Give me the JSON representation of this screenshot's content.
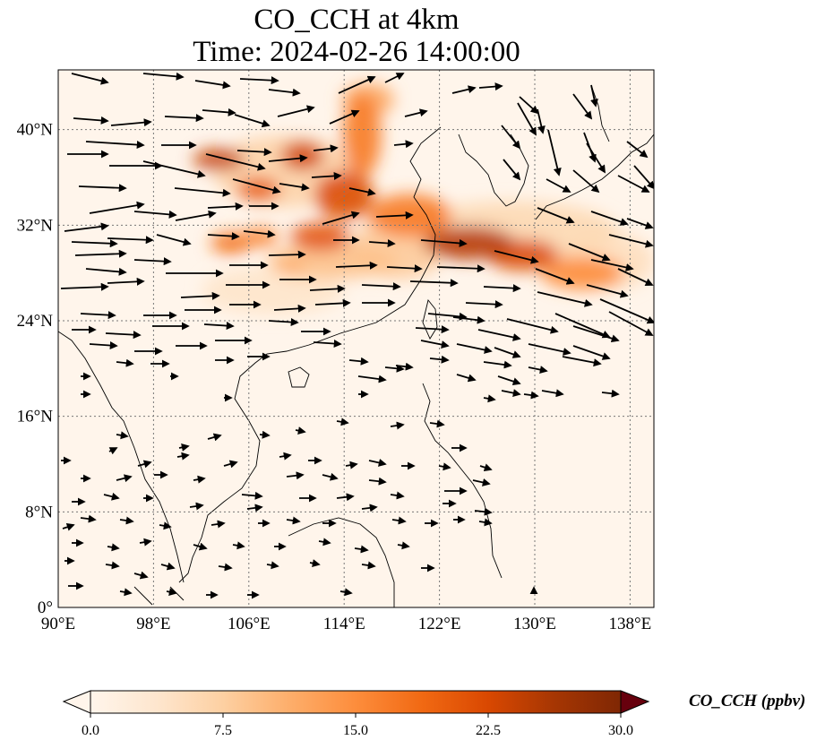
{
  "title": {
    "line1": "CO_CCH at 4km",
    "line2": "Time: 2024-02-26 14:00:00"
  },
  "map": {
    "lon_range": [
      90,
      140
    ],
    "lat_range": [
      0,
      45
    ],
    "lon_ticks": [
      {
        "value": 90,
        "label": "90°E"
      },
      {
        "value": 98,
        "label": "98°E"
      },
      {
        "value": 106,
        "label": "106°E"
      },
      {
        "value": 114,
        "label": "114°E"
      },
      {
        "value": 122,
        "label": "122°E"
      },
      {
        "value": 130,
        "label": "130°E"
      },
      {
        "value": 138,
        "label": "138°E"
      }
    ],
    "lat_ticks": [
      {
        "value": 0,
        "label": "0°"
      },
      {
        "value": 8,
        "label": "8°N"
      },
      {
        "value": 16,
        "label": "16°N"
      },
      {
        "value": 24,
        "label": "24°N"
      },
      {
        "value": 32,
        "label": "32°N"
      },
      {
        "value": 40,
        "label": "40°N"
      }
    ],
    "gridlines": true,
    "field_colors": [
      "#fff5eb",
      "#fdd8b2",
      "#f57a45",
      "#d23c1a",
      "#8b0c05"
    ],
    "plumes": [
      {
        "lon": 103.5,
        "lat": 37.5,
        "rlon": 2.2,
        "rlat": 0.9,
        "value": 24
      },
      {
        "lon": 110.5,
        "lat": 37.8,
        "rlon": 1.8,
        "rlat": 1.2,
        "value": 23
      },
      {
        "lon": 106.8,
        "lat": 35.0,
        "rlon": 1.8,
        "rlat": 1.0,
        "value": 20
      },
      {
        "lon": 114.0,
        "lat": 34.5,
        "rlon": 2.5,
        "rlat": 2.0,
        "value": 22
      },
      {
        "lon": 115.5,
        "lat": 39.5,
        "rlon": 1.6,
        "rlat": 3.5,
        "value": 17
      },
      {
        "lon": 119.5,
        "lat": 32.8,
        "rlon": 3.5,
        "rlat": 1.8,
        "value": 17
      },
      {
        "lon": 124.5,
        "lat": 30.5,
        "rlon": 3.8,
        "rlat": 1.4,
        "value": 25
      },
      {
        "lon": 129.0,
        "lat": 29.5,
        "rlon": 3.0,
        "rlat": 1.3,
        "value": 22
      },
      {
        "lon": 134.0,
        "lat": 28.0,
        "rlon": 3.5,
        "rlat": 1.4,
        "value": 15
      },
      {
        "lon": 112.0,
        "lat": 31.0,
        "rlon": 2.5,
        "rlat": 1.2,
        "value": 21
      },
      {
        "lon": 104.5,
        "lat": 30.5,
        "rlon": 1.7,
        "rlat": 0.9,
        "value": 18
      },
      {
        "lon": 107.0,
        "lat": 31.0,
        "rlon": 1.5,
        "rlat": 0.8,
        "value": 16
      },
      {
        "lon": 109.5,
        "lat": 28.5,
        "rlon": 1.2,
        "rlat": 0.6,
        "value": 12
      },
      {
        "lon": 113.0,
        "lat": 29.0,
        "rlon": 5.5,
        "rlat": 1.5,
        "value": 9
      },
      {
        "lon": 118.5,
        "lat": 30.0,
        "rlon": 4.0,
        "rlat": 2.5,
        "value": 8
      },
      {
        "lon": 109.0,
        "lat": 36.5,
        "rlon": 6.0,
        "rlat": 3.0,
        "value": 7
      },
      {
        "lon": 128.0,
        "lat": 31.5,
        "rlon": 9.0,
        "rlat": 2.5,
        "value": 6
      },
      {
        "lon": 136.0,
        "lat": 29.0,
        "rlon": 4.0,
        "rlat": 2.5,
        "value": 5
      },
      {
        "lon": 116.0,
        "lat": 42.5,
        "rlon": 2.2,
        "rlat": 1.4,
        "value": 12
      },
      {
        "lon": 108.0,
        "lat": 26.5,
        "rlon": 6.0,
        "rlat": 2.0,
        "value": 4
      }
    ]
  },
  "colorbar": {
    "vmin": 0,
    "vmax": 30,
    "ticks": [
      {
        "value": 0,
        "label": "0.0"
      },
      {
        "value": 7.5,
        "label": "7.5"
      },
      {
        "value": 15,
        "label": "15.0"
      },
      {
        "value": 22.5,
        "label": "22.5"
      },
      {
        "value": 30,
        "label": "30.0"
      }
    ],
    "label": "CO_CCH (ppbv)",
    "colors": [
      "#fff5eb",
      "#fee6ce",
      "#fdd0a2",
      "#fdae6b",
      "#fd8d3c",
      "#f16913",
      "#d94801",
      "#a63603",
      "#7f2704"
    ]
  }
}
